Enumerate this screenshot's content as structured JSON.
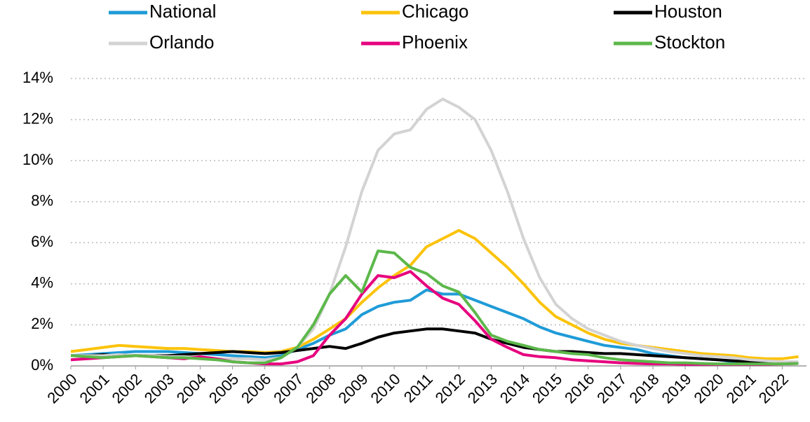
{
  "chart_data": {
    "type": "line",
    "x": [
      2000,
      2000.5,
      2001,
      2001.5,
      2002,
      2002.5,
      2003,
      2003.5,
      2004,
      2004.5,
      2005,
      2005.5,
      2006,
      2006.5,
      2007,
      2007.5,
      2008,
      2008.5,
      2009,
      2009.5,
      2010,
      2010.5,
      2011,
      2011.5,
      2012,
      2012.5,
      2013,
      2013.5,
      2014,
      2014.5,
      2015,
      2015.5,
      2016,
      2016.5,
      2017,
      2017.5,
      2018,
      2018.5,
      2019,
      2019.5,
      2020,
      2020.5,
      2021,
      2021.5,
      2022,
      2022.5
    ],
    "series": [
      {
        "name": "National",
        "color": "#1f9bd7",
        "values": [
          0.5,
          0.55,
          0.6,
          0.65,
          0.7,
          0.7,
          0.7,
          0.65,
          0.6,
          0.55,
          0.5,
          0.45,
          0.4,
          0.5,
          0.8,
          1.1,
          1.5,
          1.8,
          2.5,
          2.9,
          3.1,
          3.2,
          3.7,
          3.5,
          3.5,
          3.2,
          2.9,
          2.6,
          2.3,
          1.9,
          1.6,
          1.4,
          1.2,
          1.0,
          0.9,
          0.8,
          0.6,
          0.5,
          0.4,
          0.35,
          0.3,
          0.2,
          0.15,
          0.12,
          0.12,
          0.15
        ]
      },
      {
        "name": "Chicago",
        "color": "#fcc30b",
        "values": [
          0.7,
          0.8,
          0.9,
          1.0,
          0.95,
          0.9,
          0.85,
          0.85,
          0.8,
          0.75,
          0.7,
          0.7,
          0.65,
          0.7,
          0.9,
          1.3,
          1.8,
          2.3,
          3.1,
          3.8,
          4.4,
          4.9,
          5.8,
          6.2,
          6.6,
          6.2,
          5.5,
          4.8,
          4.0,
          3.1,
          2.4,
          2.0,
          1.6,
          1.3,
          1.1,
          1.0,
          0.9,
          0.8,
          0.7,
          0.6,
          0.55,
          0.5,
          0.4,
          0.35,
          0.35,
          0.45
        ]
      },
      {
        "name": "Houston",
        "color": "#000000",
        "values": [
          0.5,
          0.5,
          0.55,
          0.5,
          0.5,
          0.5,
          0.5,
          0.55,
          0.6,
          0.65,
          0.7,
          0.65,
          0.6,
          0.65,
          0.75,
          0.85,
          0.95,
          0.85,
          1.1,
          1.4,
          1.6,
          1.7,
          1.8,
          1.8,
          1.7,
          1.6,
          1.3,
          1.1,
          0.9,
          0.8,
          0.7,
          0.7,
          0.65,
          0.6,
          0.6,
          0.55,
          0.5,
          0.45,
          0.4,
          0.35,
          0.3,
          0.25,
          0.2,
          0.2,
          0.15,
          0.15
        ]
      },
      {
        "name": "Orlando",
        "color": "#d3d3d3",
        "values": [
          0.5,
          0.5,
          0.5,
          0.55,
          0.5,
          0.5,
          0.45,
          0.45,
          0.4,
          0.35,
          0.35,
          0.35,
          0.3,
          0.4,
          0.9,
          1.8,
          3.5,
          5.8,
          8.5,
          10.5,
          11.3,
          11.5,
          12.5,
          13.0,
          12.6,
          12.0,
          10.5,
          8.5,
          6.2,
          4.3,
          3.0,
          2.3,
          1.8,
          1.5,
          1.2,
          1.0,
          0.85,
          0.7,
          0.6,
          0.5,
          0.45,
          0.4,
          0.3,
          0.25,
          0.2,
          0.2
        ]
      },
      {
        "name": "Phoenix",
        "color": "#e6007e",
        "values": [
          0.3,
          0.35,
          0.4,
          0.45,
          0.5,
          0.45,
          0.4,
          0.35,
          0.45,
          0.35,
          0.2,
          0.15,
          0.1,
          0.1,
          0.2,
          0.5,
          1.5,
          2.3,
          3.5,
          4.4,
          4.3,
          4.6,
          3.9,
          3.3,
          3.0,
          2.2,
          1.3,
          0.9,
          0.55,
          0.45,
          0.4,
          0.3,
          0.25,
          0.2,
          0.15,
          0.12,
          0.1,
          0.1,
          0.08,
          0.08,
          0.08,
          0.08,
          0.08,
          0.08,
          0.1,
          0.12
        ]
      },
      {
        "name": "Stockton",
        "color": "#5cb84a",
        "values": [
          0.5,
          0.45,
          0.4,
          0.45,
          0.5,
          0.45,
          0.4,
          0.4,
          0.35,
          0.3,
          0.2,
          0.15,
          0.15,
          0.4,
          0.9,
          2.0,
          3.5,
          4.4,
          3.6,
          5.6,
          5.5,
          4.8,
          4.5,
          3.9,
          3.6,
          2.6,
          1.5,
          1.2,
          1.0,
          0.8,
          0.7,
          0.6,
          0.55,
          0.4,
          0.3,
          0.25,
          0.2,
          0.15,
          0.15,
          0.12,
          0.1,
          0.1,
          0.1,
          0.1,
          0.1,
          0.12
        ]
      }
    ],
    "xlim": [
      2000,
      2022.75
    ],
    "xticks": [
      2000,
      2001,
      2002,
      2003,
      2004,
      2005,
      2006,
      2007,
      2008,
      2009,
      2010,
      2011,
      2012,
      2013,
      2014,
      2015,
      2016,
      2017,
      2018,
      2019,
      2020,
      2021,
      2022
    ],
    "ylim": [
      0,
      14
    ],
    "yticks": [
      {
        "value": 0,
        "label": "0%"
      },
      {
        "value": 2,
        "label": "2%"
      },
      {
        "value": 4,
        "label": "4%"
      },
      {
        "value": 6,
        "label": "6%"
      },
      {
        "value": 8,
        "label": "8%"
      },
      {
        "value": 10,
        "label": "10%"
      },
      {
        "value": 12,
        "label": "12%"
      },
      {
        "value": 14,
        "label": "14%"
      }
    ],
    "grid": true,
    "legend": "top"
  }
}
